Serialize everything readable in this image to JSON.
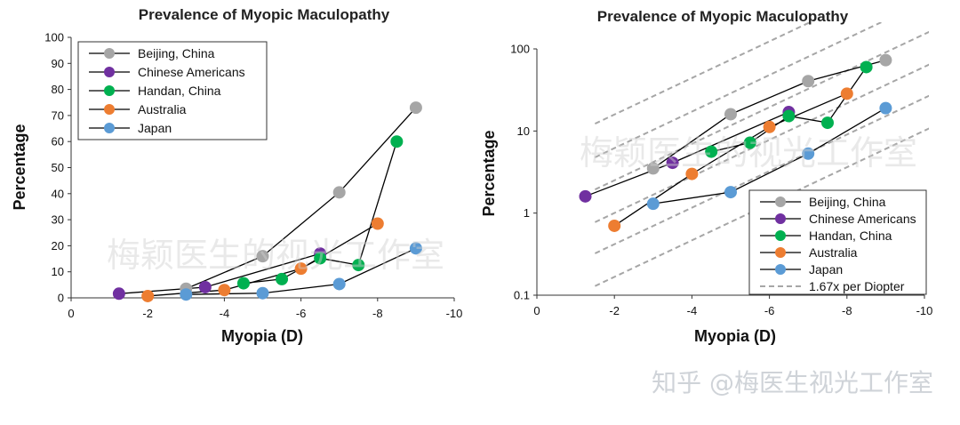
{
  "chart_data": [
    {
      "type": "line",
      "title": "Prevalence of Myopic Maculopathy",
      "xlabel": "Myopia (D)",
      "ylabel": "Percentage",
      "xlim": [
        0,
        -10
      ],
      "ylim": [
        0,
        100
      ],
      "yscale": "linear",
      "x_ticks": [
        "0",
        "-2",
        "-4",
        "-6",
        "-8",
        "-10"
      ],
      "y_ticks": [
        "0",
        "10",
        "20",
        "30",
        "40",
        "50",
        "60",
        "70",
        "80",
        "90",
        "100"
      ],
      "legend_position": "top-left",
      "series": [
        {
          "name": "Beijing, China",
          "color": "#a6a6a6",
          "x": [
            -3,
            -5,
            -7,
            -9
          ],
          "y": [
            3.5,
            16,
            40.5,
            73
          ]
        },
        {
          "name": "Chinese Americans",
          "color": "#7030a0",
          "x": [
            -1.25,
            -3.5,
            -6.5
          ],
          "y": [
            1.6,
            4.1,
            17
          ]
        },
        {
          "name": "Handan, China",
          "color": "#00b050",
          "x": [
            -4.5,
            -5.5,
            -6.5,
            -7.5,
            -8.5
          ],
          "y": [
            5.6,
            7.2,
            15.2,
            12.6,
            60
          ]
        },
        {
          "name": "Australia",
          "color": "#ed7d31",
          "x": [
            -2,
            -4,
            -6,
            -8
          ],
          "y": [
            0.7,
            3,
            11.2,
            28.5
          ]
        },
        {
          "name": "Japan",
          "color": "#5b9bd5",
          "x": [
            -3,
            -5,
            -7,
            -9
          ],
          "y": [
            1.3,
            1.8,
            5.3,
            19
          ]
        }
      ]
    },
    {
      "type": "line",
      "title": "Prevalence of Myopic Maculopathy",
      "xlabel": "Myopia (D)",
      "ylabel": "Percentage",
      "xlim": [
        0,
        -10
      ],
      "ylim": [
        0.1,
        100
      ],
      "yscale": "log",
      "x_ticks": [
        "0",
        "-2",
        "-4",
        "-6",
        "-8",
        "-10"
      ],
      "y_ticks": [
        "0.1",
        "1",
        "10",
        "100"
      ],
      "legend_position": "bottom-right",
      "series": [
        {
          "name": "Beijing, China",
          "color": "#a6a6a6",
          "x": [
            -3,
            -5,
            -7,
            -9
          ],
          "y": [
            3.5,
            16,
            40.5,
            73
          ]
        },
        {
          "name": "Chinese Americans",
          "color": "#7030a0",
          "x": [
            -1.25,
            -3.5,
            -6.5
          ],
          "y": [
            1.6,
            4.1,
            17
          ]
        },
        {
          "name": "Handan, China",
          "color": "#00b050",
          "x": [
            -4.5,
            -5.5,
            -6.5,
            -7.5,
            -8.5
          ],
          "y": [
            5.6,
            7.2,
            15.2,
            12.6,
            60
          ]
        },
        {
          "name": "Australia",
          "color": "#ed7d31",
          "x": [
            -2,
            -4,
            -6,
            -8
          ],
          "y": [
            0.7,
            3,
            11.2,
            28.5
          ]
        },
        {
          "name": "Japan",
          "color": "#5b9bd5",
          "x": [
            -3,
            -5,
            -7,
            -9
          ],
          "y": [
            1.3,
            1.8,
            5.3,
            19
          ]
        }
      ],
      "reference_line": {
        "name": "1.67x per Diopter",
        "color": "#a6a6a6",
        "growth_per_diopter": 1.67,
        "anchors": [
          {
            "x": -1,
            "y": 0.1
          },
          {
            "x": -1,
            "y": 0.25
          },
          {
            "x": -1,
            "y": 0.6
          },
          {
            "x": -1,
            "y": 1.5
          },
          {
            "x": -1,
            "y": 3.7
          },
          {
            "x": -1,
            "y": 9.5
          }
        ]
      }
    }
  ],
  "watermarks": {
    "chart1": "梅颖医生的视光工作室",
    "chart2": "梅颖医生的视光工作室",
    "footer": "知乎 @梅医生视光工作室"
  }
}
